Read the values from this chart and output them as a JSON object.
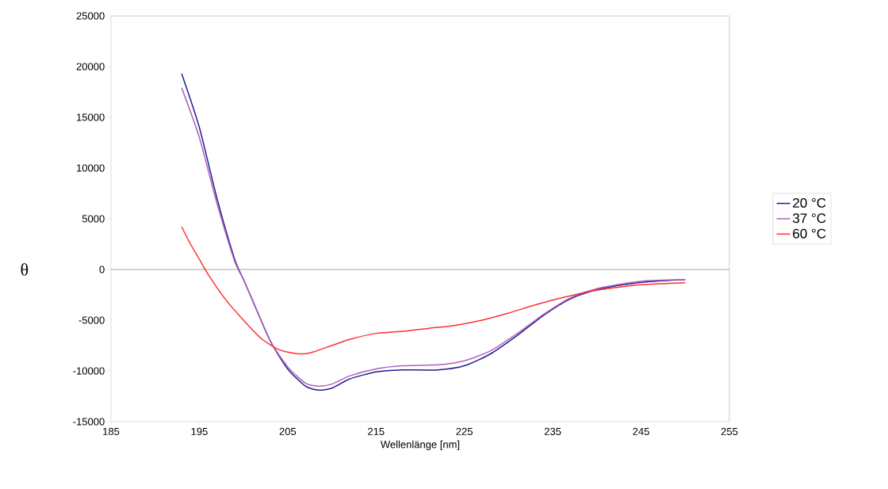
{
  "chart_data": {
    "type": "line",
    "xlabel": "Wellenlänge [nm]",
    "ylabel": "θ",
    "xlim": [
      185,
      255
    ],
    "xticks": [
      185,
      195,
      205,
      215,
      225,
      235,
      245,
      255
    ],
    "ylim": [
      -15000,
      25000
    ],
    "yticks": [
      -15000,
      -10000,
      -5000,
      0,
      5000,
      10000,
      15000,
      20000,
      25000
    ],
    "grid": false,
    "legend": "right",
    "marker": "none",
    "line_style": "solid",
    "ref_lines": [
      {
        "axis": "y",
        "value": 0,
        "color": "#808080"
      }
    ],
    "series": [
      {
        "name": "20 °C",
        "color": "#1f1f8f",
        "x": [
          193,
          195,
          197,
          199,
          200,
          201,
          203,
          205,
          207,
          208.5,
          210,
          212,
          215,
          218,
          222,
          225,
          228,
          231,
          234,
          237,
          240,
          243,
          246,
          250
        ],
        "values": [
          19300,
          14000,
          7000,
          1000,
          -1000,
          -3000,
          -7000,
          -9800,
          -11500,
          -11900,
          -11700,
          -10800,
          -10100,
          -9900,
          -9900,
          -9500,
          -8300,
          -6500,
          -4500,
          -2900,
          -2000,
          -1500,
          -1200,
          -1000
        ]
      },
      {
        "name": "37 °C",
        "color": "#b060c0",
        "x": [
          193,
          195,
          197,
          199,
          200,
          201,
          203,
          205,
          207,
          208.5,
          210,
          212,
          215,
          218,
          222,
          225,
          228,
          231,
          234,
          237,
          240,
          243,
          246,
          250
        ],
        "values": [
          17900,
          13000,
          6500,
          800,
          -1000,
          -3000,
          -7000,
          -9600,
          -11200,
          -11500,
          -11300,
          -10500,
          -9800,
          -9500,
          -9400,
          -9000,
          -8000,
          -6300,
          -4400,
          -2800,
          -1900,
          -1400,
          -1100,
          -1000
        ]
      },
      {
        "name": "60 °C",
        "color": "#ff3030",
        "x": [
          193,
          194,
          195,
          196,
          198,
          200,
          202,
          204,
          206,
          207,
          208,
          210,
          212,
          215,
          218,
          221,
          224,
          227,
          230,
          233,
          236,
          239,
          242,
          245,
          250
        ],
        "values": [
          4200,
          2500,
          1000,
          -500,
          -3000,
          -5000,
          -6800,
          -7900,
          -8300,
          -8300,
          -8100,
          -7500,
          -6900,
          -6300,
          -6100,
          -5800,
          -5500,
          -5000,
          -4300,
          -3500,
          -2800,
          -2200,
          -1800,
          -1500,
          -1300
        ]
      }
    ]
  }
}
